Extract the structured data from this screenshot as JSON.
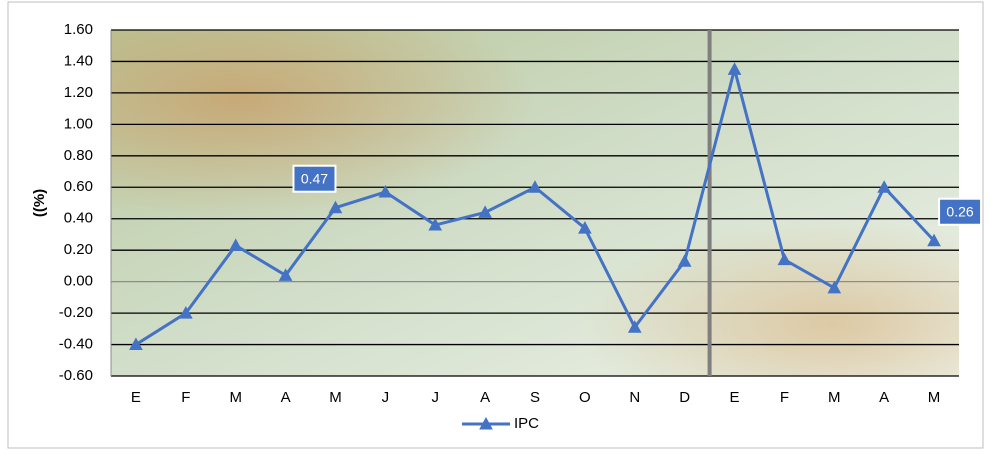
{
  "chart_data": {
    "type": "line",
    "y_label": "((%)",
    "categories": [
      "E",
      "F",
      "M",
      "A",
      "M",
      "J",
      "J",
      "A",
      "S",
      "O",
      "N",
      "D",
      "E",
      "F",
      "M",
      "A",
      "M"
    ],
    "series": [
      {
        "name": "IPC",
        "color": "#4472c4",
        "values": [
          -0.4,
          -0.2,
          0.23,
          0.04,
          0.47,
          0.57,
          0.36,
          0.44,
          0.6,
          0.34,
          -0.29,
          0.13,
          1.35,
          0.14,
          -0.04,
          0.6,
          0.26
        ]
      }
    ],
    "labeled_points": [
      4,
      16
    ],
    "divider_after": 11,
    "ylim": [
      -0.6,
      1.6
    ],
    "yticks": [
      {
        "value": -0.6,
        "label": "-0.60"
      },
      {
        "value": -0.4,
        "label": "-0.40"
      },
      {
        "value": -0.2,
        "label": "-0.20"
      },
      {
        "value": 0,
        "label": "0.00"
      },
      {
        "value": 0.2,
        "label": "0.20"
      },
      {
        "value": 0.4,
        "label": "0.40"
      },
      {
        "value": 0.6,
        "label": "0.60"
      },
      {
        "value": 0.8,
        "label": "0.80"
      },
      {
        "value": 1.0,
        "label": "1.00"
      },
      {
        "value": 1.2,
        "label": "1.20"
      },
      {
        "value": 1.4,
        "label": "1.40"
      },
      {
        "value": 1.6,
        "label": "1.60"
      }
    ],
    "grid": true,
    "legend": "bottom"
  }
}
